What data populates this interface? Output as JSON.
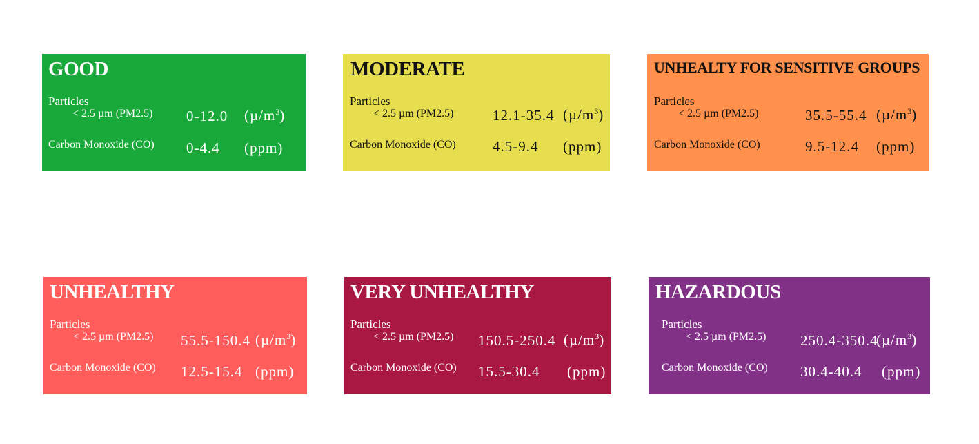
{
  "labels": {
    "particles": "Particles",
    "pm25": "< 2.5 µm (PM2.5)",
    "co": "Carbon Monoxide (CO)",
    "unit_pm_prefix": "(µ/m",
    "unit_pm_sup": "3",
    "unit_pm_suffix": ")",
    "unit_co": "(ppm)"
  },
  "cards": [
    {
      "title": "GOOD",
      "pm_range": "0-12.0",
      "co_range": "0-4.4",
      "color": "#19a83a",
      "text_color": "#ffffff"
    },
    {
      "title": "MODERATE",
      "pm_range": "12.1-35.4",
      "co_range": "4.5-9.4",
      "color": "#e6de4f",
      "text_color": "#111111"
    },
    {
      "title": "UNHEALTY FOR SENSITIVE GROUPS",
      "pm_range": "35.5-55.4",
      "co_range": "9.5-12.4",
      "color": "#ff914d",
      "text_color": "#111111"
    },
    {
      "title": "UNHEALTHY",
      "pm_range": "55.5-150.4",
      "co_range": "12.5-15.4",
      "color": "#ff5c5c",
      "text_color": "#ffffff"
    },
    {
      "title": "VERY UNHEALTHY",
      "pm_range": "150.5-250.4",
      "co_range": "15.5-30.4",
      "color": "#a81842",
      "text_color": "#ffffff"
    },
    {
      "title": "HAZARDOUS",
      "pm_range": "250.4-350.4",
      "co_range": "30.4-40.4",
      "color": "#823286",
      "text_color": "#ffffff"
    }
  ]
}
